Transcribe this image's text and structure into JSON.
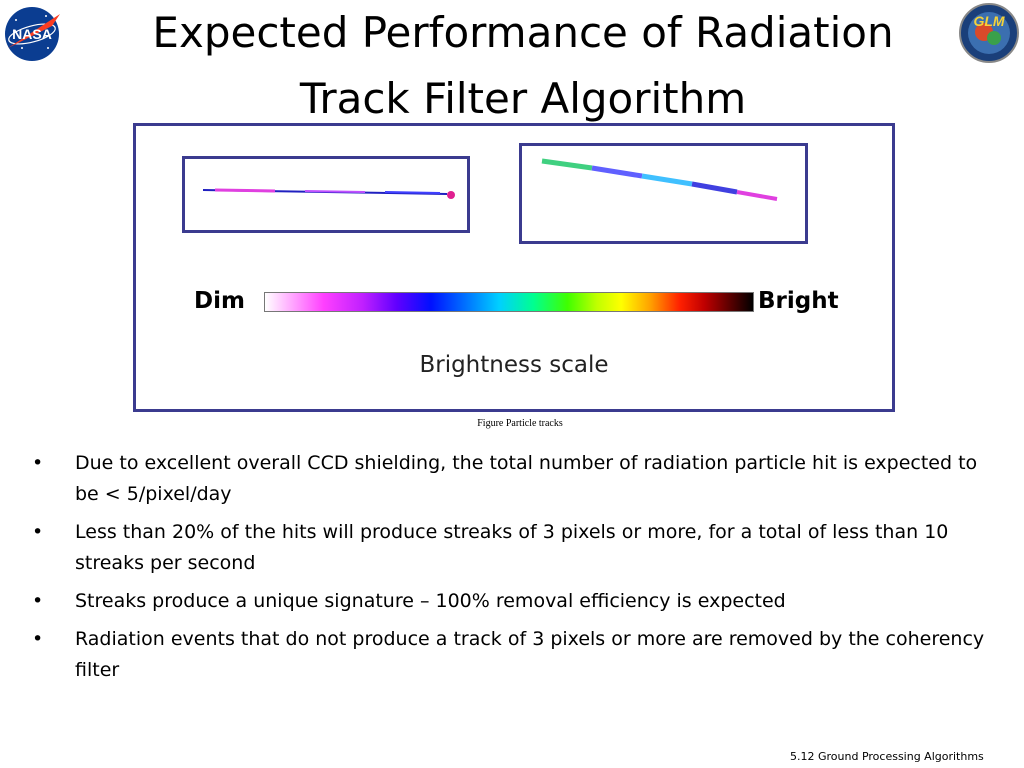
{
  "title": {
    "line1": "Expected Performance of Radiation",
    "line2": "Track Filter Algorithm"
  },
  "logos": {
    "left": {
      "icon": "nasa-logo",
      "text": "NASA"
    },
    "right": {
      "icon": "glm-logo",
      "text": "GLM"
    }
  },
  "figure": {
    "scale": {
      "dim_label": "Dim",
      "bright_label": "Bright",
      "caption": "Brightness scale"
    },
    "caption": "Figure   Particle tracks"
  },
  "bullets": [
    "Due to excellent overall CCD shielding, the total number of radiation particle hit is expected to be < 5/pixel/day",
    "Less than 20% of the hits will produce streaks of 3 pixels or more, for a total of less than 10 streaks per second",
    "Streaks produce a unique signature – 100% removal efficiency is expected",
    "Radiation events that do not produce a track of 3 pixels or more are removed by the coherency filter"
  ],
  "bullet_symbol": "•",
  "footer": "5.12 Ground Processing Algorithms",
  "colors": {
    "frame": "#3b3b8f",
    "nasa_blue": "#0b3d91",
    "nasa_red": "#fc3d21"
  }
}
